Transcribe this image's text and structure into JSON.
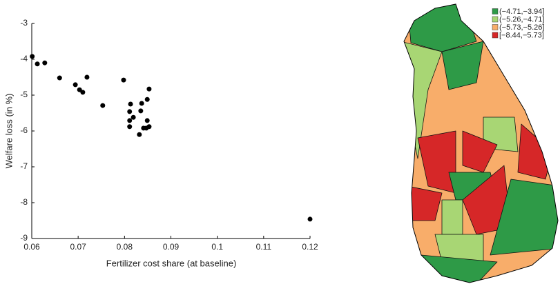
{
  "chart_data": {
    "type": "scatter",
    "xlabel": "Fertilizer cost share (at baseline)",
    "ylabel": "Welfare loss (in %)",
    "x": [
      0.0601,
      0.0612,
      0.0628,
      0.066,
      0.0694,
      0.0703,
      0.071,
      0.0719,
      0.0753,
      0.0798,
      0.0813,
      0.0811,
      0.0819,
      0.0811,
      0.0811,
      0.0837,
      0.0835,
      0.0849,
      0.0853,
      0.0849,
      0.0847,
      0.0832,
      0.0841,
      0.0853,
      0.12
    ],
    "values": [
      -3.92,
      -4.13,
      -4.1,
      -4.52,
      -4.71,
      -4.85,
      -4.92,
      -4.5,
      -5.29,
      -4.58,
      -5.25,
      -5.46,
      -5.62,
      -5.71,
      -5.88,
      -5.23,
      -5.44,
      -5.12,
      -4.83,
      -5.71,
      -5.92,
      -6.1,
      -5.92,
      -5.88,
      -8.46
    ],
    "color": "#000000",
    "xlim": [
      0.06,
      0.12
    ],
    "xticks": [
      0.06,
      0.07,
      0.08,
      0.09,
      0.1,
      0.11,
      0.12
    ],
    "ylim": [
      -9,
      -3
    ],
    "yticks": [
      -9,
      -8,
      -7,
      -6,
      -5,
      -4,
      -3
    ]
  },
  "map": {
    "legend": [
      {
        "label": "(−4.71,−3.94]",
        "color": "#2e9a47"
      },
      {
        "label": "(−5.26,−4.71]",
        "color": "#a8d674"
      },
      {
        "label": "(−5.73,−5.26]",
        "color": "#f8ad6a"
      },
      {
        "label": "[−8.44,−5.73]",
        "color": "#d62728"
      }
    ]
  }
}
